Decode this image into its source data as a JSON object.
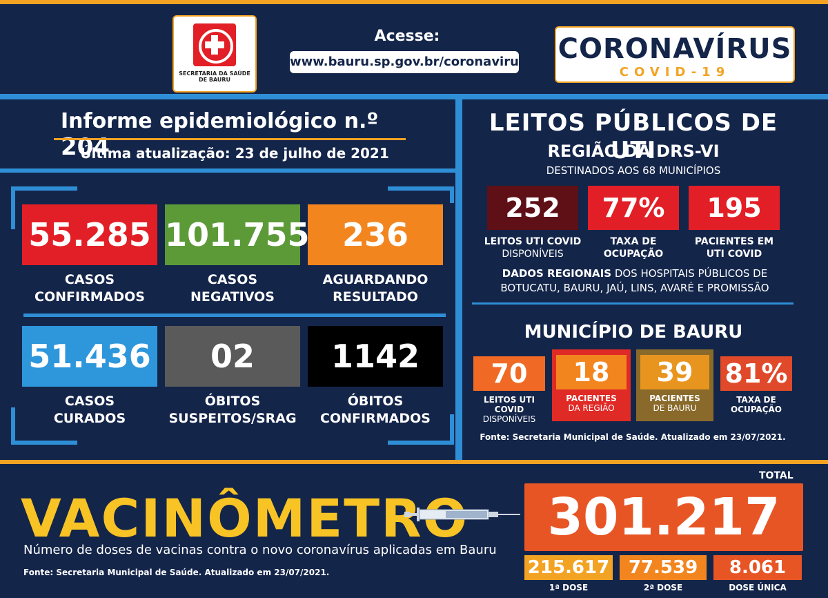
{
  "header": {
    "logo_text": "SECRETARIA DA SAÚDE DE BAURU",
    "acesse": "Acesse:",
    "url": "www.bauru.sp.gov.br/coronavirus",
    "brand_title": "CORONAVÍRUS",
    "brand_subtitle": "COVID-19"
  },
  "informe": {
    "title": "Informe epidemiológico n.º",
    "number": "204",
    "updated": "Última atualização:  23 de julho de 2021"
  },
  "stats": [
    {
      "value": "55.285",
      "label1": "CASOS",
      "label2": "CONFIRMADOS",
      "color": "#e21f26"
    },
    {
      "value": "101.755",
      "label1": "CASOS",
      "label2": "NEGATIVOS",
      "color": "#5c9a38"
    },
    {
      "value": "236",
      "label1": "AGUARDANDO",
      "label2": "RESULTADO",
      "color": "#f3851f"
    },
    {
      "value": "51.436",
      "label1": "CASOS",
      "label2": "CURADOS",
      "color": "#2e96db"
    },
    {
      "value": "02",
      "label1": "ÓBITOS",
      "label2": "SUSPEITOS/SRAG",
      "color": "#5a5a5a"
    },
    {
      "value": "1142",
      "label1": "ÓBITOS",
      "label2": "CONFIRMADOS",
      "color": "#000000"
    }
  ],
  "leitos": {
    "title": "LEITOS PÚBLICOS DE UTI",
    "regiao": "REGIÃO DA DRS-VI",
    "destinados": "DESTINADOS AOS 68 MUNICÍPIOS",
    "boxes": [
      {
        "value": "252",
        "label1": "LEITOS UTI COVID",
        "label2": "DISPONÍVEIS",
        "color": "#5e1016"
      },
      {
        "value": "77%",
        "label1": "TAXA DE",
        "label2": "OCUPAÇÃO",
        "color": "#e21f26"
      },
      {
        "value": "195",
        "label1": "PACIENTES EM",
        "label2": "UTI COVID",
        "color": "#e21f26"
      }
    ],
    "dados_bold": "DADOS REGIONAIS",
    "dados_line1": " DOS HOSPITAIS PÚBLICOS DE",
    "dados_line2": "BOTUCATU, BAURU, JAÚ, LINS, AVARÉ E PROMISSÃO"
  },
  "municipio": {
    "title": "MUNICÍPIO DE BAURU",
    "boxes": [
      {
        "value": "70",
        "label1": "LEITOS UTI COVID",
        "label2": "DISPONÍVEIS",
        "color": "#f06a26"
      },
      {
        "value": "18",
        "label1": "PACIENTES",
        "label2": "DA REGIÃO",
        "color": "#f3851f"
      },
      {
        "value": "39",
        "label1": "PACIENTES",
        "label2": "DE BAURU",
        "color": "#e8951f"
      },
      {
        "value": "81%",
        "label1": "TAXA DE",
        "label2": "OCUPAÇÃO",
        "color": "#e04a2a"
      }
    ],
    "fonte": "Fonte: Secretaria Municipal de Saúde. Atualizado em 23/07/2021."
  },
  "vacinometro": {
    "title": "VACINÔMETRO",
    "desc": "Número de doses de vacinas contra o novo coronavírus aplicadas em Bauru",
    "fonte": "Fonte: Secretaria Municipal de Saúde. Atualizado em 23/07/2021.",
    "total_label": "TOTAL",
    "total": "301.217",
    "doses": [
      {
        "value": "215.617",
        "label": "1ª DOSE",
        "color": "#f3a323"
      },
      {
        "value": "77.539",
        "label": "2ª DOSE",
        "color": "#f3851f"
      },
      {
        "value": "8.061",
        "label": "DOSE ÚNICA",
        "color": "#e85525"
      }
    ]
  }
}
